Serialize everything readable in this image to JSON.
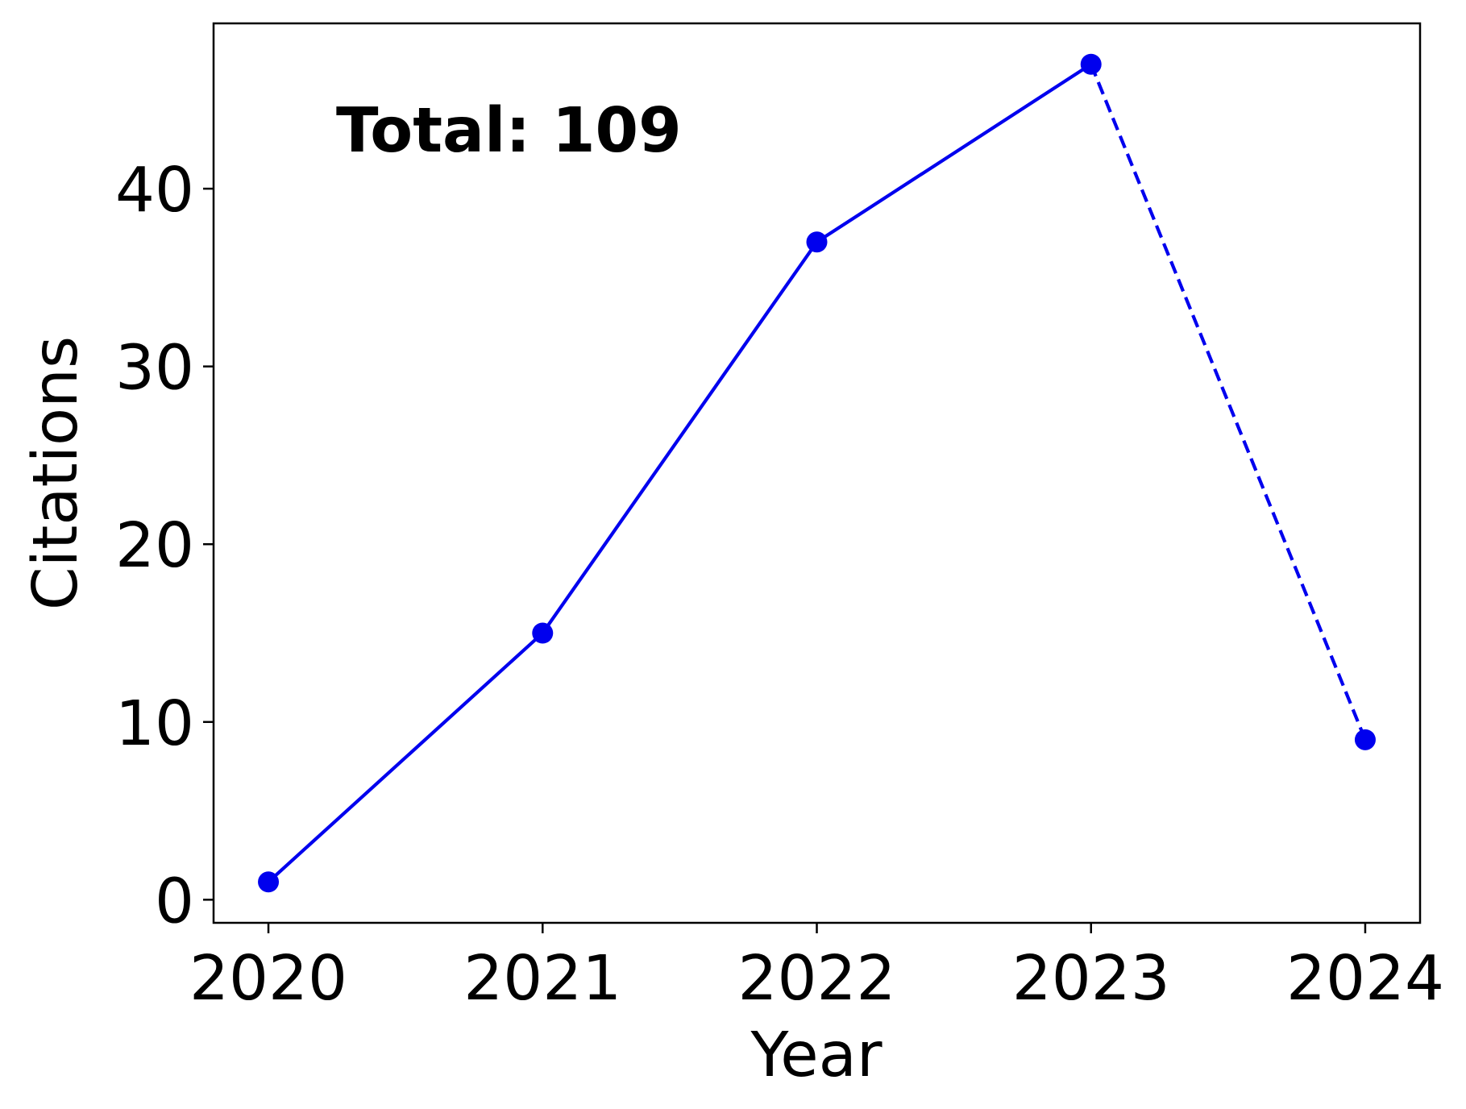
{
  "chart_data": {
    "type": "line",
    "title": "",
    "xlabel": "Year",
    "ylabel": "Citations",
    "x": [
      2020,
      2021,
      2022,
      2023,
      2024
    ],
    "x_tick_labels": [
      "2020",
      "2021",
      "2022",
      "2023",
      "2024"
    ],
    "y_ticks": [
      0,
      10,
      20,
      30,
      40
    ],
    "y_tick_labels": [
      "0",
      "10",
      "20",
      "30",
      "40"
    ],
    "xlim": [
      2019.8,
      2024.2
    ],
    "ylim": [
      -1.3,
      49.3
    ],
    "grid": false,
    "series": [
      {
        "values": [
          1,
          15,
          37,
          47,
          9
        ],
        "color": "#0000ee",
        "marker": "circle",
        "line_style_by_segment": [
          "solid",
          "solid",
          "solid",
          "dashed"
        ]
      }
    ],
    "annotation": "Total: 109"
  }
}
